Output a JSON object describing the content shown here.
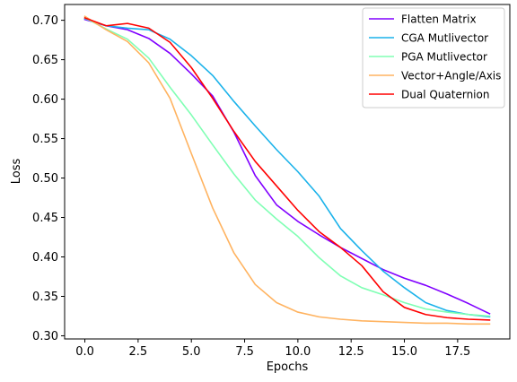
{
  "chart_data": {
    "type": "line",
    "xlabel": "Epochs",
    "ylabel": "Loss",
    "xlim": [
      -0.95,
      19.95
    ],
    "ylim": [
      0.296,
      0.72
    ],
    "xticks": [
      0.0,
      2.5,
      5.0,
      7.5,
      10.0,
      12.5,
      15.0,
      17.5
    ],
    "xtick_labels": [
      "0.0",
      "2.5",
      "5.0",
      "7.5",
      "10.0",
      "12.5",
      "15.0",
      "17.5"
    ],
    "yticks": [
      0.3,
      0.35,
      0.4,
      0.45,
      0.5,
      0.55,
      0.6,
      0.65,
      0.7
    ],
    "ytick_labels": [
      "0.30",
      "0.35",
      "0.40",
      "0.45",
      "0.50",
      "0.55",
      "0.60",
      "0.65",
      "0.70"
    ],
    "legend_position": "top-right",
    "grid": false,
    "x": [
      0,
      1,
      2,
      3,
      4,
      5,
      6,
      7,
      8,
      9,
      10,
      11,
      12,
      13,
      14,
      15,
      16,
      17,
      18,
      19
    ],
    "series": [
      {
        "name": "Flatten Matrix",
        "color": "#8000ff",
        "values": [
          0.701,
          0.693,
          0.688,
          0.677,
          0.658,
          0.632,
          0.604,
          0.558,
          0.503,
          0.466,
          0.445,
          0.428,
          0.412,
          0.398,
          0.384,
          0.373,
          0.364,
          0.353,
          0.341,
          0.328
        ]
      },
      {
        "name": "CGA Mutlivector",
        "color": "#1ab2ea",
        "values": [
          0.702,
          0.693,
          0.69,
          0.688,
          0.676,
          0.655,
          0.63,
          0.597,
          0.566,
          0.536,
          0.508,
          0.477,
          0.436,
          0.408,
          0.382,
          0.361,
          0.342,
          0.332,
          0.327,
          0.324
        ]
      },
      {
        "name": "PGA Mutlivector",
        "color": "#80ffb4",
        "values": [
          0.703,
          0.689,
          0.676,
          0.652,
          0.615,
          0.58,
          0.542,
          0.505,
          0.472,
          0.448,
          0.426,
          0.399,
          0.376,
          0.361,
          0.352,
          0.342,
          0.334,
          0.33,
          0.327,
          0.325
        ]
      },
      {
        "name": "Vector+Angle/Axis",
        "color": "#ffb360",
        "values": [
          0.705,
          0.688,
          0.673,
          0.646,
          0.601,
          0.531,
          0.462,
          0.405,
          0.365,
          0.342,
          0.33,
          0.324,
          0.321,
          0.319,
          0.318,
          0.317,
          0.316,
          0.316,
          0.315,
          0.315
        ]
      },
      {
        "name": "Dual Quaternion",
        "color": "#ff0000",
        "values": [
          0.703,
          0.693,
          0.696,
          0.69,
          0.672,
          0.64,
          0.601,
          0.559,
          0.521,
          0.49,
          0.459,
          0.432,
          0.412,
          0.389,
          0.356,
          0.336,
          0.327,
          0.323,
          0.321,
          0.32
        ]
      }
    ]
  }
}
